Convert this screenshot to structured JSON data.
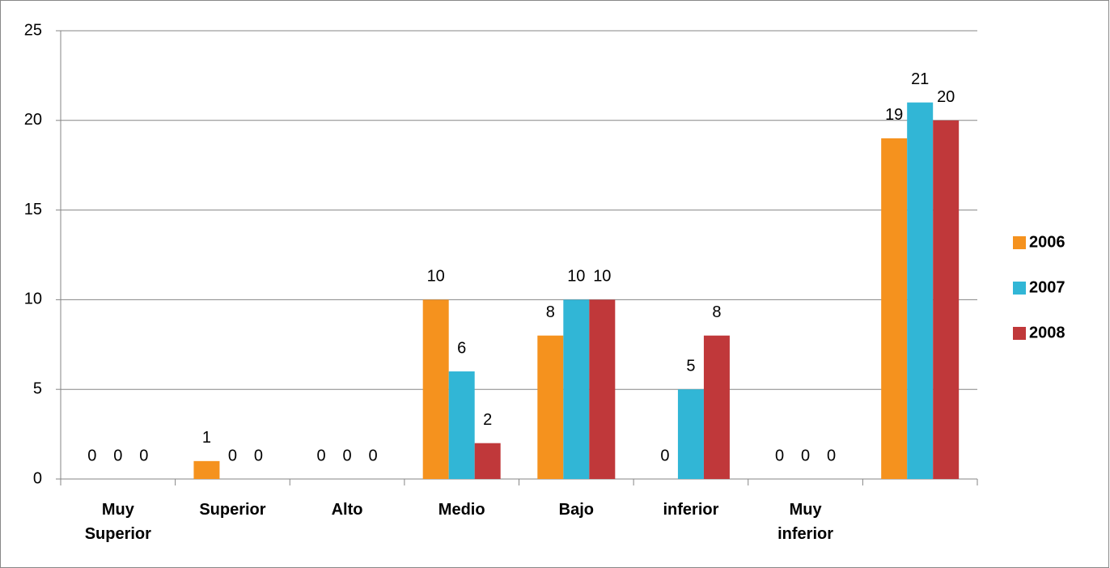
{
  "chart_data": {
    "type": "bar",
    "categories": [
      "Muy Superior",
      "Superior",
      "Alto",
      "Medio",
      "Bajo",
      "inferior",
      "Muy inferior",
      null
    ],
    "series": [
      {
        "name": "2006",
        "color": "#f5921e",
        "values": [
          0,
          1,
          0,
          10,
          8,
          0,
          0,
          19
        ]
      },
      {
        "name": "2007",
        "color": "#31b6d6",
        "values": [
          0,
          0,
          0,
          6,
          10,
          5,
          0,
          21
        ]
      },
      {
        "name": "2008",
        "color": "#c0383a",
        "values": [
          0,
          0,
          0,
          2,
          10,
          8,
          0,
          20
        ]
      }
    ],
    "ylim": [
      0,
      25
    ],
    "yticks": [
      0,
      5,
      10,
      15,
      20,
      25
    ],
    "grid": true,
    "legend": "right"
  }
}
